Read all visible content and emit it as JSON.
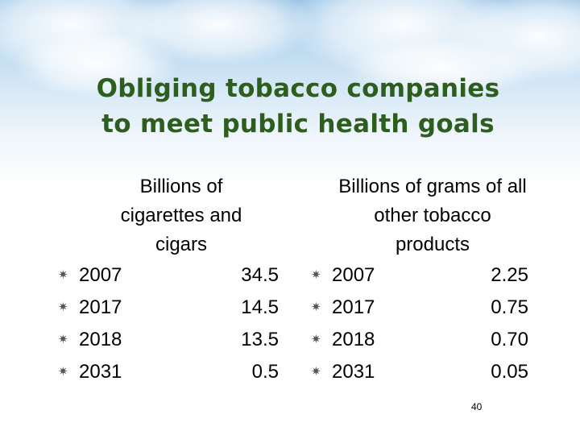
{
  "slide": {
    "title_line1": "Obliging tobacco companies",
    "title_line2": "to meet public health goals",
    "page_number": "40",
    "colors": {
      "title": "#2e5e1e",
      "sky": "#b9d8f0"
    }
  },
  "left": {
    "heading": "Billions of\ncigarettes and\ncigars",
    "rows": [
      {
        "year": "2007",
        "value": "34.5"
      },
      {
        "year": "2017",
        "value": "14.5"
      },
      {
        "year": "2018",
        "value": "13.5"
      },
      {
        "year": "2031",
        "value": "0.5"
      }
    ]
  },
  "right": {
    "heading": "Billions of grams of all\nother tobacco\nproducts",
    "rows": [
      {
        "year": "2007",
        "value": "2.25"
      },
      {
        "year": "2017",
        "value": "0.75"
      },
      {
        "year": "2018",
        "value": "0.70"
      },
      {
        "year": "2031",
        "value": "0.05"
      }
    ]
  },
  "bullet_glyph": "✷",
  "bullet_icon": "asterisk-bullet-icon"
}
